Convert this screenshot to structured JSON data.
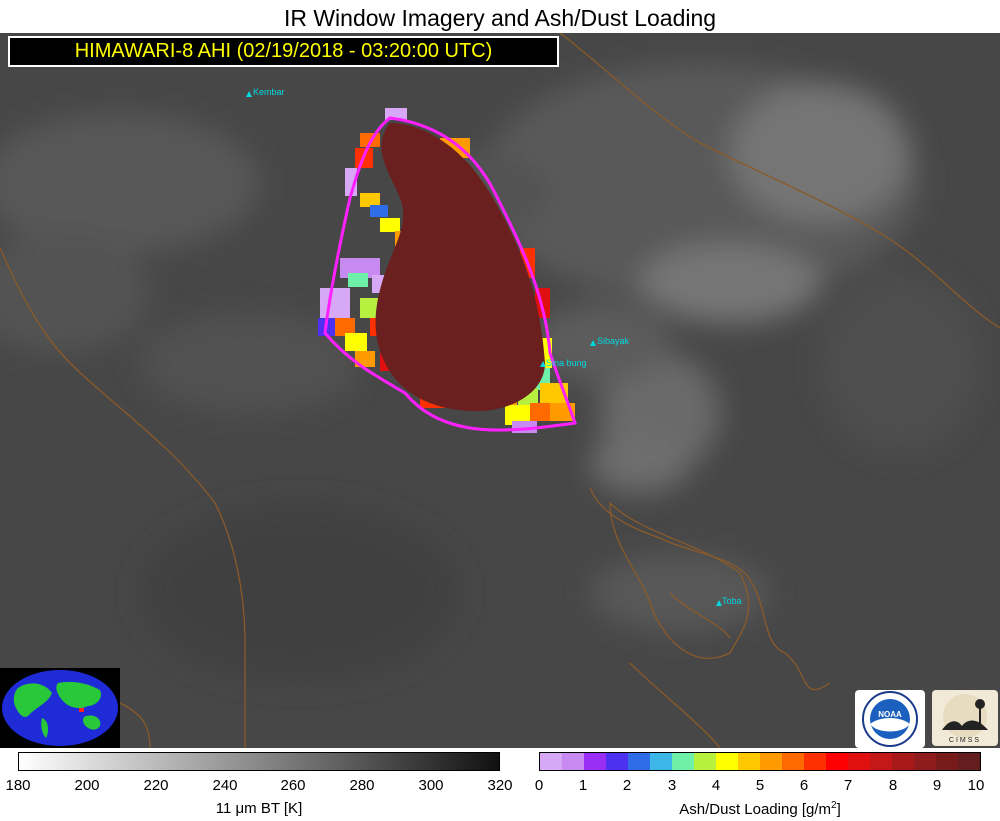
{
  "title": "IR Window Imagery and Ash/Dust Loading",
  "subtitle": "HIMAWARI-8 AHI (02/19/2018 - 03:20:00 UTC)",
  "volcanoes": [
    {
      "name": "Kembar"
    },
    {
      "name": "Sibayak"
    },
    {
      "name": "Sinabung",
      "shown_text": "Sina bung"
    },
    {
      "name": "Toba"
    }
  ],
  "bt_colorbar": {
    "ticks": [
      "180",
      "200",
      "220",
      "240",
      "260",
      "280",
      "300",
      "320"
    ],
    "label_pre": "11 ",
    "label_mu": "μ",
    "label_post": "m BT [K]",
    "range": [
      180,
      320
    ],
    "colors": {
      "low": "#ffffff",
      "high": "#111111"
    }
  },
  "ash_colorbar": {
    "ticks": [
      "0",
      "1",
      "2",
      "3",
      "4",
      "5",
      "6",
      "7",
      "8",
      "9",
      "10"
    ],
    "label": "Ash/Dust Loading [g/m",
    "label_sup": "2",
    "label_end": "]",
    "range": [
      0,
      10
    ],
    "colors": [
      "#d6a8f5",
      "#c78af0",
      "#9a2ef5",
      "#4d30f0",
      "#2f6de8",
      "#3db6e8",
      "#6ef0a8",
      "#b8f040",
      "#ffff00",
      "#ffc800",
      "#ff9a00",
      "#ff6a00",
      "#ff3000",
      "#ff0000",
      "#e01010",
      "#c41818",
      "#a81a1a",
      "#8e1c1c",
      "#761a1a",
      "#651e1e"
    ]
  },
  "logos": {
    "noaa": "NOAA",
    "cimss": "CIMSS"
  },
  "colors": {
    "outline": "#ff20ff",
    "ash_core": "#6b1f1f",
    "coast": "#8a5a2a",
    "background_ir": "#4a4a4a"
  }
}
